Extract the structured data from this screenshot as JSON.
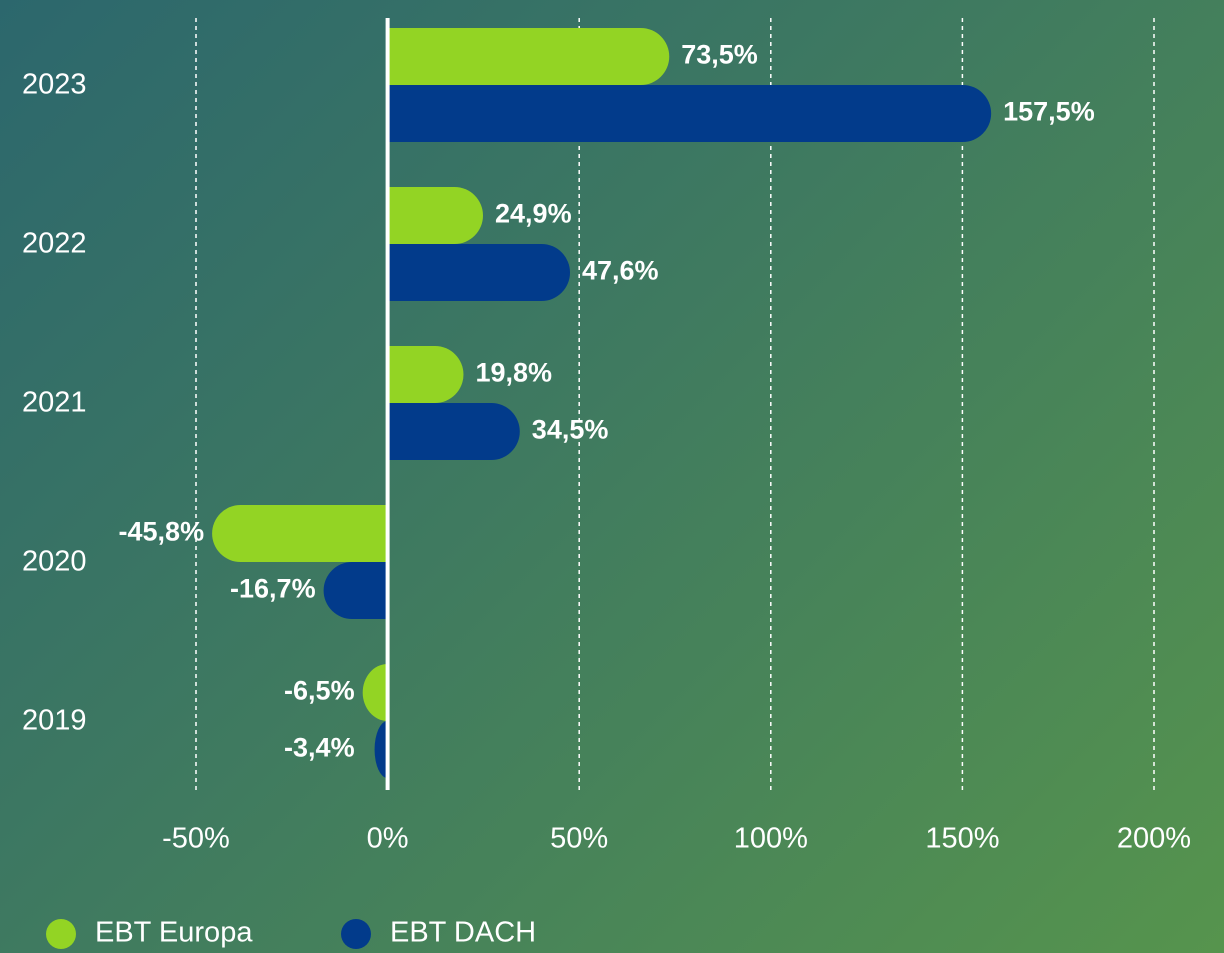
{
  "chart_data": {
    "type": "barh",
    "categories": [
      "2023",
      "2022",
      "2021",
      "2020",
      "2019"
    ],
    "series": [
      {
        "name": "EBT Europa",
        "color": "#93d424",
        "values": [
          73.5,
          24.9,
          19.8,
          -45.8,
          -6.5
        ],
        "value_labels": [
          "73,5%",
          "24,9%",
          "19,8%",
          "-45,8%",
          "-6,5%"
        ]
      },
      {
        "name": "EBT DACH",
        "color": "#023b8b",
        "values": [
          157.5,
          47.6,
          34.5,
          -16.7,
          -3.4
        ],
        "value_labels": [
          "157,5%",
          "47,6%",
          "34,5%",
          "-16,7%",
          "-3,4%"
        ]
      }
    ],
    "xlim": [
      -50,
      200
    ],
    "xticks": [
      {
        "value": -50,
        "label": "-50%"
      },
      {
        "value": 0,
        "label": "0%"
      },
      {
        "value": 50,
        "label": "50%"
      },
      {
        "value": 100,
        "label": "100%"
      },
      {
        "value": 150,
        "label": "150%"
      },
      {
        "value": 200,
        "label": "200%"
      }
    ],
    "grid": true
  }
}
